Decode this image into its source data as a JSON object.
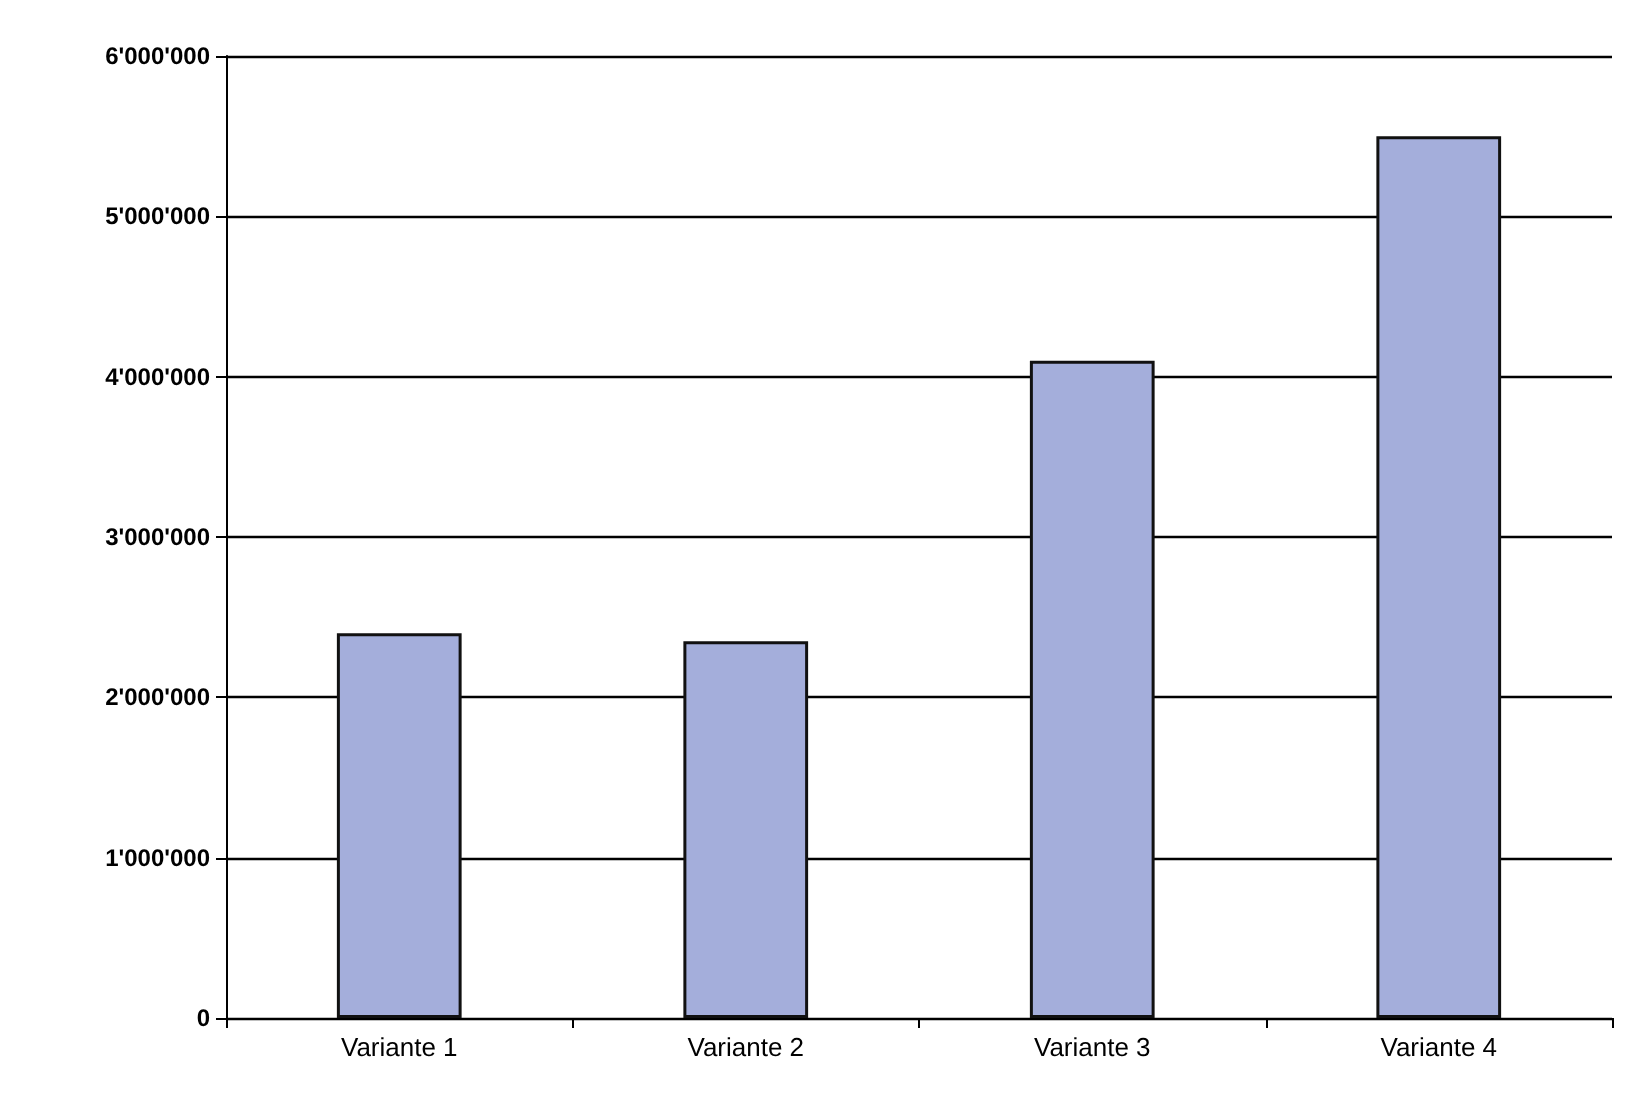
{
  "chart_data": {
    "type": "bar",
    "categories": [
      "Variante 1",
      "Variante 2",
      "Variante 3",
      "Variante 4"
    ],
    "values": [
      2400000,
      2350000,
      4100000,
      5500000
    ],
    "color": "#a4aedb",
    "ylim": [
      0,
      6000000
    ],
    "yticks": [
      {
        "value": 0,
        "label": "0"
      },
      {
        "value": 1000000,
        "label": "1'000'000"
      },
      {
        "value": 2000000,
        "label": "2'000'000"
      },
      {
        "value": 3000000,
        "label": "3'000'000"
      },
      {
        "value": 4000000,
        "label": "4'000'000"
      },
      {
        "value": 5000000,
        "label": "5'000'000"
      },
      {
        "value": 6000000,
        "label": "6'000'000"
      }
    ],
    "grid": "y"
  }
}
